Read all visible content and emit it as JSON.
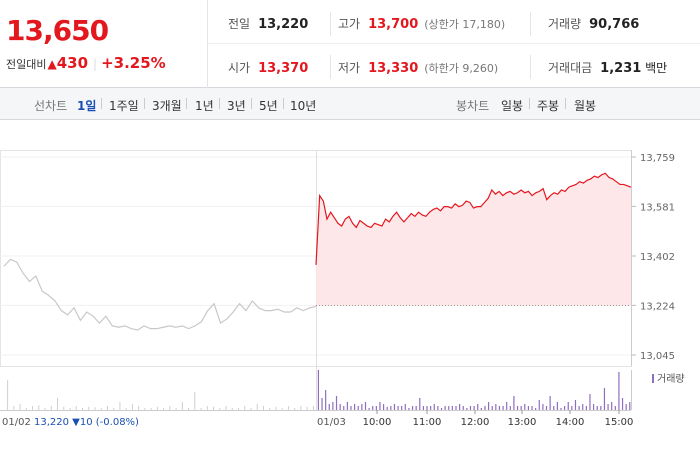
{
  "summary": {
    "current_price": "13,650",
    "change_label": "전일대비",
    "change_arrow": "▲",
    "change_value": "430",
    "change_rate": "+3.25%",
    "prev_close_label": "전일",
    "prev_close": "13,220",
    "high_label": "고가",
    "high": "13,700",
    "upper_limit": "(상한가 17,180)",
    "volume_label": "거래량",
    "volume": "90,766",
    "open_label": "시가",
    "open": "13,370",
    "low_label": "저가",
    "low": "13,330",
    "lower_limit": "(하한가 9,260)",
    "amount_label": "거래대금",
    "amount": "1,231",
    "amount_unit": "백만"
  },
  "period_bar": {
    "line_label": "선차트",
    "line_items": [
      "1일",
      "1주일",
      "3개월",
      "1년",
      "3년",
      "5년",
      "10년"
    ],
    "active": "1일",
    "candle_label": "봉차트",
    "candle_items": [
      "일봉",
      "주봉",
      "월봉"
    ]
  },
  "colors": {
    "up": "#e3171e",
    "down": "#1a4fb4",
    "prev_line": "#c8c8c8",
    "fill": "#fde3e4",
    "volume": "#8e6fbf"
  },
  "chart_data": {
    "type": "area",
    "y_ticks": [
      "13,759",
      "13,581",
      "13,402",
      "13,224",
      "13,045"
    ],
    "ylim": [
      13045,
      13759
    ],
    "baseline": 13224,
    "x_labels": [
      "01/02",
      "01/03",
      "10:00",
      "11:00",
      "12:00",
      "13:00",
      "14:00",
      "15:00"
    ],
    "prev_day_info": {
      "date": "01/02",
      "close": "13,220",
      "arrow": "▼",
      "change": "10",
      "rate": "(-0.08%)"
    },
    "volume_legend": "거래량",
    "prev_day_series": [
      13365,
      13390,
      13380,
      13340,
      13310,
      13330,
      13275,
      13260,
      13240,
      13205,
      13190,
      13215,
      13170,
      13200,
      13185,
      13160,
      13185,
      13150,
      13145,
      13150,
      13140,
      13135,
      13150,
      13140,
      13140,
      13145,
      13150,
      13145,
      13150,
      13140,
      13150,
      13165,
      13205,
      13230,
      13160,
      13175,
      13200,
      13230,
      13205,
      13240,
      13215,
      13205,
      13205,
      13210,
      13200,
      13200,
      13215,
      13205,
      13215,
      13220
    ],
    "today_series": [
      13370,
      13620,
      13600,
      13535,
      13560,
      13540,
      13520,
      13510,
      13535,
      13545,
      13520,
      13505,
      13530,
      13520,
      13510,
      13505,
      13520,
      13515,
      13510,
      13535,
      13525,
      13545,
      13560,
      13540,
      13525,
      13540,
      13555,
      13545,
      13560,
      13550,
      13545,
      13560,
      13570,
      13575,
      13565,
      13580,
      13580,
      13575,
      13590,
      13580,
      13585,
      13600,
      13595,
      13575,
      13580,
      13580,
      13595,
      13610,
      13640,
      13625,
      13635,
      13620,
      13630,
      13635,
      13625,
      13630,
      13640,
      13630,
      13635,
      13620,
      13630,
      13635,
      13645,
      13605,
      13620,
      13630,
      13625,
      13640,
      13635,
      13650,
      13655,
      13660,
      13670,
      13665,
      13675,
      13680,
      13690,
      13685,
      13695,
      13700,
      13685,
      13680,
      13670,
      13660,
      13660,
      13655,
      13650
    ],
    "prev_day_volume": [
      0.75,
      0.1,
      0.15,
      0.05,
      0.1,
      0.12,
      0.05,
      0.1,
      0.3,
      0.08,
      0.05,
      0.1,
      0.05,
      0.08,
      0.07,
      0.05,
      0.1,
      0.05,
      0.2,
      0.05,
      0.15,
      0.1,
      0.05,
      0.05,
      0.08,
      0.05,
      0.1,
      0.05,
      0.2,
      0.05,
      0.45,
      0.05,
      0.1,
      0.08,
      0.05,
      0.1,
      0.05,
      0.05,
      0.1,
      0.05,
      0.15,
      0.1,
      0.05,
      0.08,
      0.05,
      0.1,
      0.05,
      0.1,
      0.08,
      0.1
    ],
    "today_volume": [
      1.0,
      0.3,
      0.5,
      0.15,
      0.2,
      0.35,
      0.15,
      0.1,
      0.2,
      0.1,
      0.15,
      0.1,
      0.15,
      0.2,
      0.05,
      0.1,
      0.1,
      0.2,
      0.15,
      0.08,
      0.1,
      0.15,
      0.1,
      0.1,
      0.15,
      0.05,
      0.1,
      0.1,
      0.3,
      0.1,
      0.1,
      0.1,
      0.15,
      0.1,
      0.05,
      0.1,
      0.1,
      0.1,
      0.1,
      0.15,
      0.1,
      0.05,
      0.1,
      0.1,
      0.15,
      0.05,
      0.1,
      0.2,
      0.1,
      0.15,
      0.1,
      0.1,
      0.2,
      0.1,
      0.35,
      0.1,
      0.1,
      0.15,
      0.1,
      0.1,
      0.05,
      0.25,
      0.15,
      0.1,
      0.35,
      0.1,
      0.2,
      0.05,
      0.1,
      0.2,
      0.1,
      0.25,
      0.1,
      0.15,
      0.1,
      0.4,
      0.15,
      0.1,
      0.1,
      0.55,
      0.15,
      0.2,
      0.1,
      0.95,
      0.3,
      0.15,
      0.2
    ]
  }
}
